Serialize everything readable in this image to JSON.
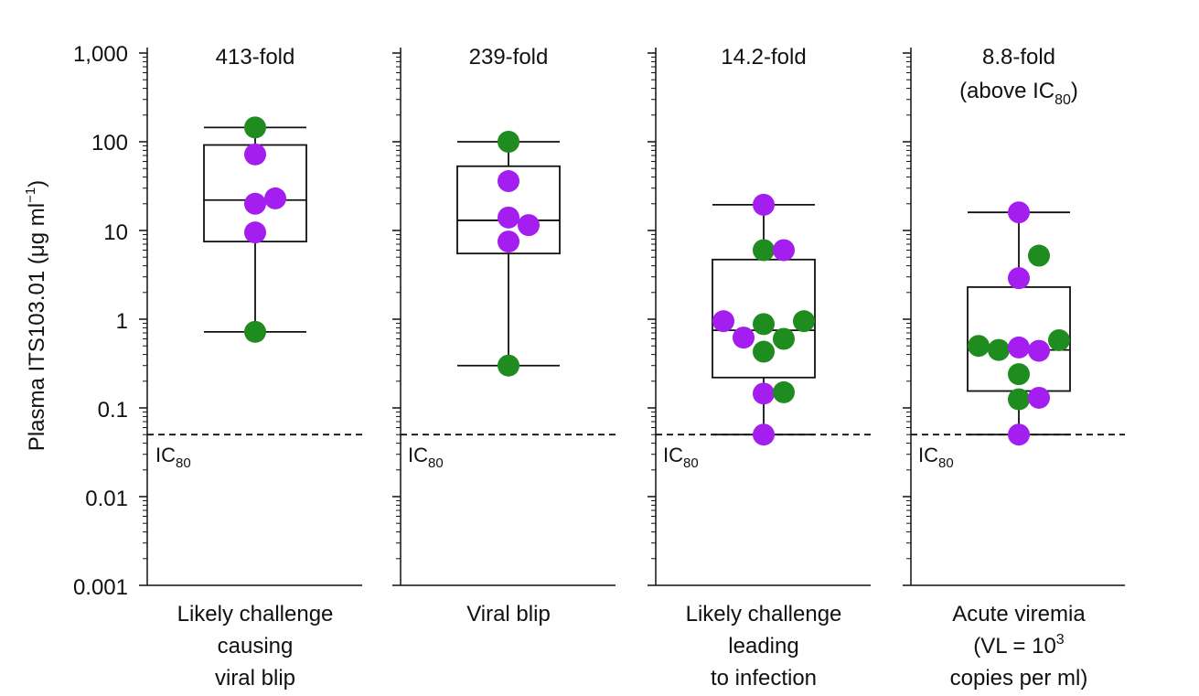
{
  "chart_data": {
    "type": "box-scatter",
    "ylabel": "Plasma ITS103.01 (μg ml",
    "ylabel_sup": "−1",
    "ylabel_close": ")",
    "yscale": "log",
    "ylim": [
      0.001,
      1000
    ],
    "yticks": [
      {
        "value": 1000,
        "label": "1,000"
      },
      {
        "value": 100,
        "label": "100"
      },
      {
        "value": 10,
        "label": "10"
      },
      {
        "value": 1,
        "label": "1"
      },
      {
        "value": 0.1,
        "label": "0.1"
      },
      {
        "value": 0.01,
        "label": "0.01"
      },
      {
        "value": 0.001,
        "label": "0.001"
      }
    ],
    "reference_line": {
      "value": 0.05,
      "label": "IC",
      "label_sub": "80",
      "style": "dashed"
    },
    "colors": {
      "green": "#1e8c1e",
      "purple": "#a51ef0",
      "axis": "#111111"
    },
    "panels": [
      {
        "name": "likely-challenge-viral-blip",
        "annotation": [
          "413-fold"
        ],
        "category_lines": [
          "Likely challenge",
          "causing",
          "viral blip"
        ],
        "box": {
          "whisker_low": 0.72,
          "q1": 7.5,
          "median": 22,
          "q3": 92,
          "whisker_high": 145
        },
        "points": [
          {
            "value": 145,
            "offset": 0,
            "color": "green"
          },
          {
            "value": 72,
            "offset": 0,
            "color": "purple"
          },
          {
            "value": 20,
            "offset": 0,
            "color": "purple"
          },
          {
            "value": 23,
            "offset": 1,
            "color": "purple"
          },
          {
            "value": 9.5,
            "offset": 0,
            "color": "purple"
          },
          {
            "value": 0.72,
            "offset": 0,
            "color": "green"
          }
        ]
      },
      {
        "name": "viral-blip",
        "annotation": [
          "239-fold"
        ],
        "category_lines": [
          "Viral blip"
        ],
        "box": {
          "whisker_low": 0.3,
          "q1": 5.5,
          "median": 13,
          "q3": 53,
          "whisker_high": 100
        },
        "points": [
          {
            "value": 100,
            "offset": 0,
            "color": "green"
          },
          {
            "value": 36,
            "offset": 0,
            "color": "purple"
          },
          {
            "value": 14,
            "offset": 0,
            "color": "purple"
          },
          {
            "value": 11.5,
            "offset": 1,
            "color": "purple"
          },
          {
            "value": 7.5,
            "offset": 0,
            "color": "purple"
          },
          {
            "value": 0.3,
            "offset": 0,
            "color": "green"
          }
        ]
      },
      {
        "name": "likely-challenge-infection",
        "annotation": [
          "14.2-fold"
        ],
        "category_lines": [
          "Likely challenge",
          "leading",
          "to infection"
        ],
        "box": {
          "whisker_low": 0.05,
          "q1": 0.22,
          "median": 0.75,
          "q3": 4.7,
          "whisker_high": 19.5
        },
        "points": [
          {
            "value": 19.5,
            "offset": 0,
            "color": "purple"
          },
          {
            "value": 6,
            "offset": 0,
            "color": "green"
          },
          {
            "value": 6,
            "offset": 1,
            "color": "purple"
          },
          {
            "value": 0.95,
            "offset": -2,
            "color": "purple"
          },
          {
            "value": 0.95,
            "offset": 2,
            "color": "green"
          },
          {
            "value": 0.88,
            "offset": 0,
            "color": "green"
          },
          {
            "value": 0.62,
            "offset": -1,
            "color": "purple"
          },
          {
            "value": 0.6,
            "offset": 1,
            "color": "green"
          },
          {
            "value": 0.43,
            "offset": 0,
            "color": "green"
          },
          {
            "value": 0.145,
            "offset": 0,
            "color": "purple"
          },
          {
            "value": 0.15,
            "offset": 1,
            "color": "green"
          },
          {
            "value": 0.05,
            "offset": 0,
            "color": "purple"
          }
        ]
      },
      {
        "name": "acute-viremia",
        "annotation": [
          "8.8-fold",
          "(above IC",
          "80",
          ")"
        ],
        "category_lines": [
          "Acute viremia",
          "(VL = 10",
          "3",
          "copies per ml)"
        ],
        "box": {
          "whisker_low": 0.05,
          "q1": 0.155,
          "median": 0.45,
          "q3": 2.3,
          "whisker_high": 16
        },
        "points": [
          {
            "value": 16,
            "offset": 0,
            "color": "purple"
          },
          {
            "value": 5.2,
            "offset": 1,
            "color": "green"
          },
          {
            "value": 2.9,
            "offset": 0,
            "color": "purple"
          },
          {
            "value": 0.58,
            "offset": 2,
            "color": "green"
          },
          {
            "value": 0.5,
            "offset": -2,
            "color": "green"
          },
          {
            "value": 0.45,
            "offset": -1,
            "color": "green"
          },
          {
            "value": 0.48,
            "offset": 0,
            "color": "purple"
          },
          {
            "value": 0.44,
            "offset": 1,
            "color": "purple"
          },
          {
            "value": 0.24,
            "offset": 0,
            "color": "green"
          },
          {
            "value": 0.125,
            "offset": 0,
            "color": "green"
          },
          {
            "value": 0.13,
            "offset": 1,
            "color": "purple"
          },
          {
            "value": 0.05,
            "offset": 0,
            "color": "purple"
          }
        ]
      }
    ]
  }
}
